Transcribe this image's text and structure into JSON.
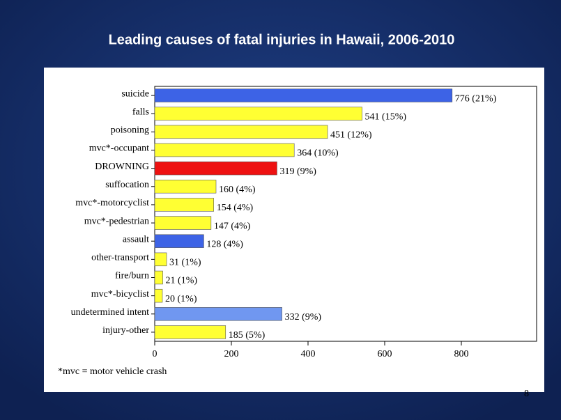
{
  "chart_data": {
    "type": "bar",
    "orientation": "horizontal",
    "title": "Leading causes of fatal injuries in Hawaii, 2006-2010",
    "categories": [
      "suicide",
      "falls",
      "poisoning",
      "mvc*-occupant",
      "DROWNING",
      "suffocation",
      "mvc*-motorcyclist",
      "mvc*-pedestrian",
      "assault",
      "other-transport",
      "fire/burn",
      "mvc*-bicyclist",
      "undetermined intent",
      "injury-other"
    ],
    "values": [
      776,
      541,
      451,
      364,
      319,
      160,
      154,
      147,
      128,
      31,
      21,
      20,
      332,
      185
    ],
    "value_labels": [
      "776 (21%)",
      "541 (15%)",
      "451 (12%)",
      "364 (10%)",
      "319 (9%)",
      "160 (4%)",
      "154 (4%)",
      "147 (4%)",
      "128 (4%)",
      "31 (1%)",
      "21 (1%)",
      "20 (1%)",
      "332 (9%)",
      "185 (5%)"
    ],
    "colors": [
      "#3d63e6",
      "#ffff33",
      "#ffff33",
      "#ffff33",
      "#ee1111",
      "#ffff33",
      "#ffff33",
      "#ffff33",
      "#3d63e6",
      "#ffff33",
      "#ffff33",
      "#ffff33",
      "#7097f0",
      "#ffff33"
    ],
    "xlim": [
      0,
      1000
    ],
    "xticks": [
      0,
      200,
      400,
      600,
      800
    ],
    "footnote": "*mvc = motor vehicle crash"
  },
  "page_number": "8"
}
